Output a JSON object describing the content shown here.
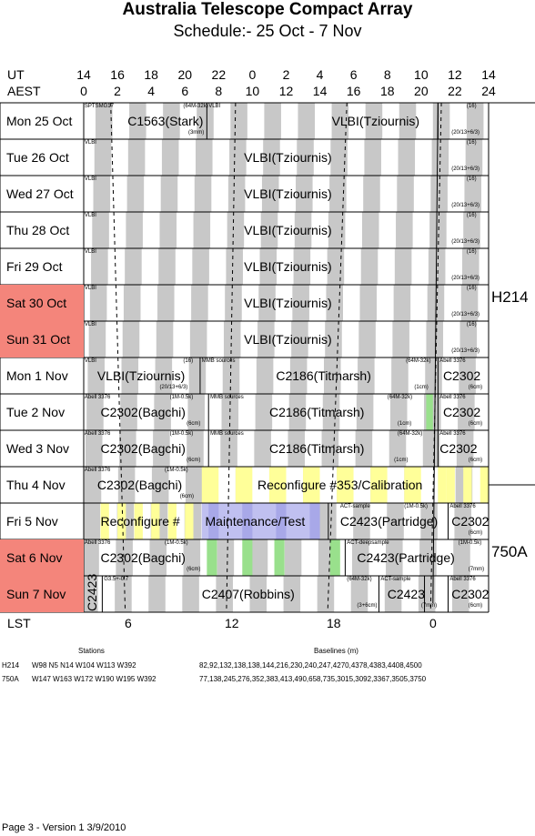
{
  "title": "Australia Telescope Compact Array",
  "subtitle": "Schedule:- 25 Oct - 7  Nov",
  "axis": {
    "ut_label": "UT",
    "aest_label": "AEST",
    "lst_label": "LST",
    "ut_ticks": [
      "14",
      "16",
      "18",
      "20",
      "22",
      "0",
      "2",
      "4",
      "6",
      "8",
      "10",
      "12",
      "14"
    ],
    "aest_ticks": [
      "0",
      "2",
      "4",
      "6",
      "8",
      "10",
      "12",
      "14",
      "16",
      "18",
      "20",
      "22",
      "24"
    ],
    "lst_ticks": [
      "6",
      "12",
      "18",
      "0"
    ]
  },
  "days": [
    {
      "label": "Mon   25 Oct",
      "weekend": false
    },
    {
      "label": "Tue   26 Oct",
      "weekend": false
    },
    {
      "label": "Wed   27 Oct",
      "weekend": false
    },
    {
      "label": "Thu   28 Oct",
      "weekend": false
    },
    {
      "label": "Fri    29 Oct",
      "weekend": false
    },
    {
      "label": "Sat    30 Oct",
      "weekend": true
    },
    {
      "label": "Sun    31 Oct",
      "weekend": true
    },
    {
      "label": "Mon   1  Nov",
      "weekend": false
    },
    {
      "label": "Tue   2  Nov",
      "weekend": false
    },
    {
      "label": "Wed   3  Nov",
      "weekend": false
    },
    {
      "label": "Thu   4  Nov",
      "weekend": false
    },
    {
      "label": "Fri    5  Nov",
      "weekend": false
    },
    {
      "label": "Sat    6  Nov",
      "weekend": true
    },
    {
      "label": "Sun    7  Nov",
      "weekend": true
    }
  ],
  "configs": [
    "H214",
    "750A"
  ],
  "projects": {
    "sptsmg17": "SPTSMG17",
    "c1563": "C1563(Stark)",
    "c1563_cfg": "(64M-32k)",
    "c1563_rx": "(3mm)",
    "vlbi": "VLBI",
    "vlbi_long": "VLBI(Tziournis)",
    "n16": "(16)",
    "rx_201363": "(20/13+6/3)",
    "mmb": "MMB sources",
    "c2186": "C2186(Titmarsh)",
    "cfg_64m": "(64M-32k)",
    "rx_1cm": "(1cm)",
    "abell": "Abell 3376",
    "c2302": "C2302",
    "c2302_long": "C2302(Bagchi)",
    "cfg_1m": "(1M-0.5k)",
    "rx_6cm": "(6cm)",
    "reconfig353": "Reconfigure #353/Calibration",
    "reconfig": "Reconfigure #",
    "maintenance": "Maintenance/Test",
    "act_sample": "ACT-sample",
    "c2423_long": "C2423(Partridge)",
    "act_deep": "ACT-deepsample",
    "rx_7mm": "(7mm)",
    "c2423": "C2423",
    "g3": "G3.5+-0.7",
    "c2407": "C2407(Robbins)",
    "rx_36cm": "(3+6cm)"
  },
  "footer": {
    "stations_heading": "Stations",
    "baselines_heading": "Baselines (m)",
    "rows": [
      {
        "config": "H214",
        "stations": "W98 N5 N14 W104 W113 W392",
        "baselines": "82,92,132,138,138,144,216,230,240,247,4270,4378,4383,4408,4500"
      },
      {
        "config": "750A",
        "stations": "W147 W163 W172 W190 W195 W392",
        "baselines": "77,138,245,276,352,383,413,490,658,735,3015,3092,3367,3505,3750"
      }
    ],
    "page_note": "Page 3 - Version 1  3/9/2010"
  },
  "colors": {
    "weekend": "#f4857b",
    "lst_band": "#c8c8c8",
    "reconfig": "#ffff99",
    "maintenance": "#c0c0f0",
    "green": "#99e08c"
  }
}
